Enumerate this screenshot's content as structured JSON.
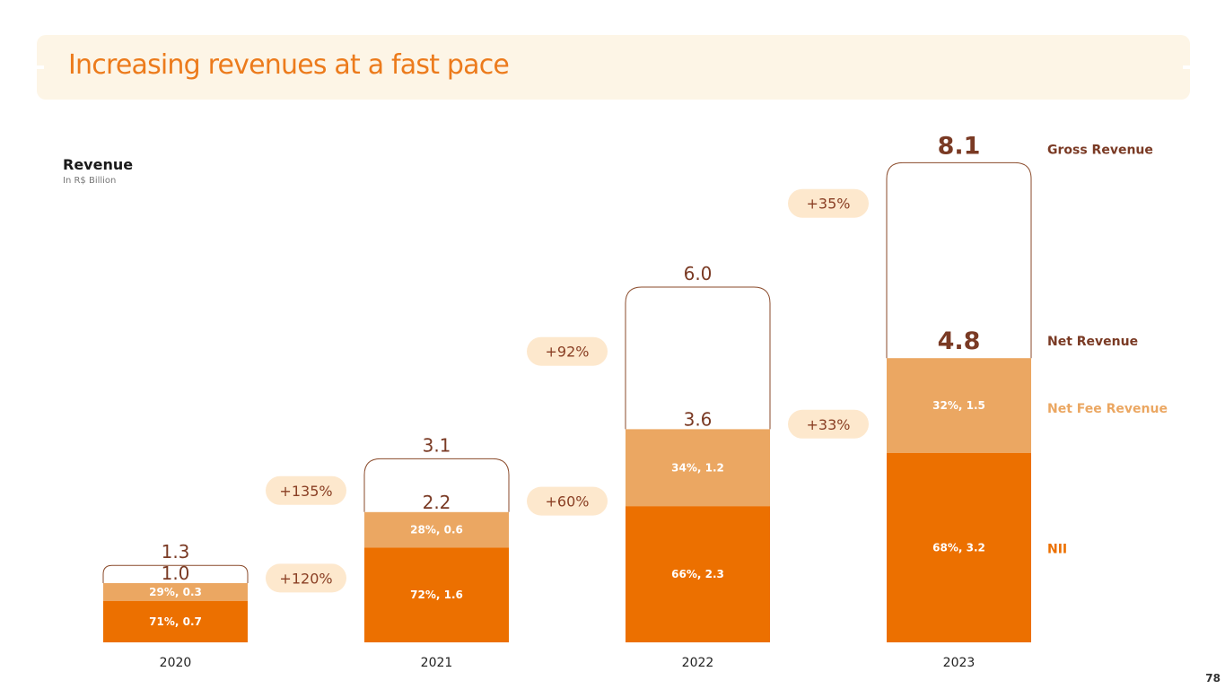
{
  "header": {
    "title": "Increasing revenues at a fast pace"
  },
  "subtitle": {
    "label": "Revenue",
    "unit": "In R$ Billion"
  },
  "page_number": "78",
  "colors": {
    "nii": "#ec7000",
    "net_fee": "#eba762",
    "outline": "#8a4a2a",
    "value_text": "#7a3a24",
    "pill_bg": "#fde8cd",
    "pill_text": "#8a3f24",
    "banner": "#fdf5e6",
    "title": "#ec7b1c"
  },
  "chart_data": {
    "type": "bar",
    "stacked": true,
    "title": "Revenue",
    "ylabel": "In R$ Billion",
    "categories": [
      "2020",
      "2021",
      "2022",
      "2023"
    ],
    "series": [
      {
        "name": "NII",
        "values": [
          0.7,
          1.6,
          2.3,
          3.2
        ],
        "labels": [
          "71%, 0.7",
          "72%, 1.6",
          "66%, 2.3",
          "68%, 3.2"
        ]
      },
      {
        "name": "Net Fee Revenue",
        "values": [
          0.3,
          0.6,
          1.2,
          1.5
        ],
        "labels": [
          "29%, 0.3",
          "28%, 0.6",
          "34%, 1.2",
          "32%, 1.5"
        ]
      }
    ],
    "net_revenue": {
      "name": "Net Revenue",
      "values": [
        1.0,
        2.2,
        3.6,
        4.8
      ],
      "labels": [
        "1.0",
        "2.2",
        "3.6",
        "4.8"
      ]
    },
    "gross_revenue": {
      "name": "Gross Revenue",
      "values": [
        1.3,
        3.1,
        6.0,
        8.1
      ],
      "labels": [
        "1.3",
        "3.1",
        "6.0",
        "8.1"
      ]
    },
    "growth_gross": [
      "+135%",
      "+92%",
      "+35%"
    ],
    "growth_net": [
      "+120%",
      "+60%",
      "+33%"
    ],
    "legend": [
      "Gross Revenue",
      "Net Revenue",
      "Net Fee Revenue",
      "NII"
    ],
    "ylim": [
      0,
      8.1
    ]
  }
}
